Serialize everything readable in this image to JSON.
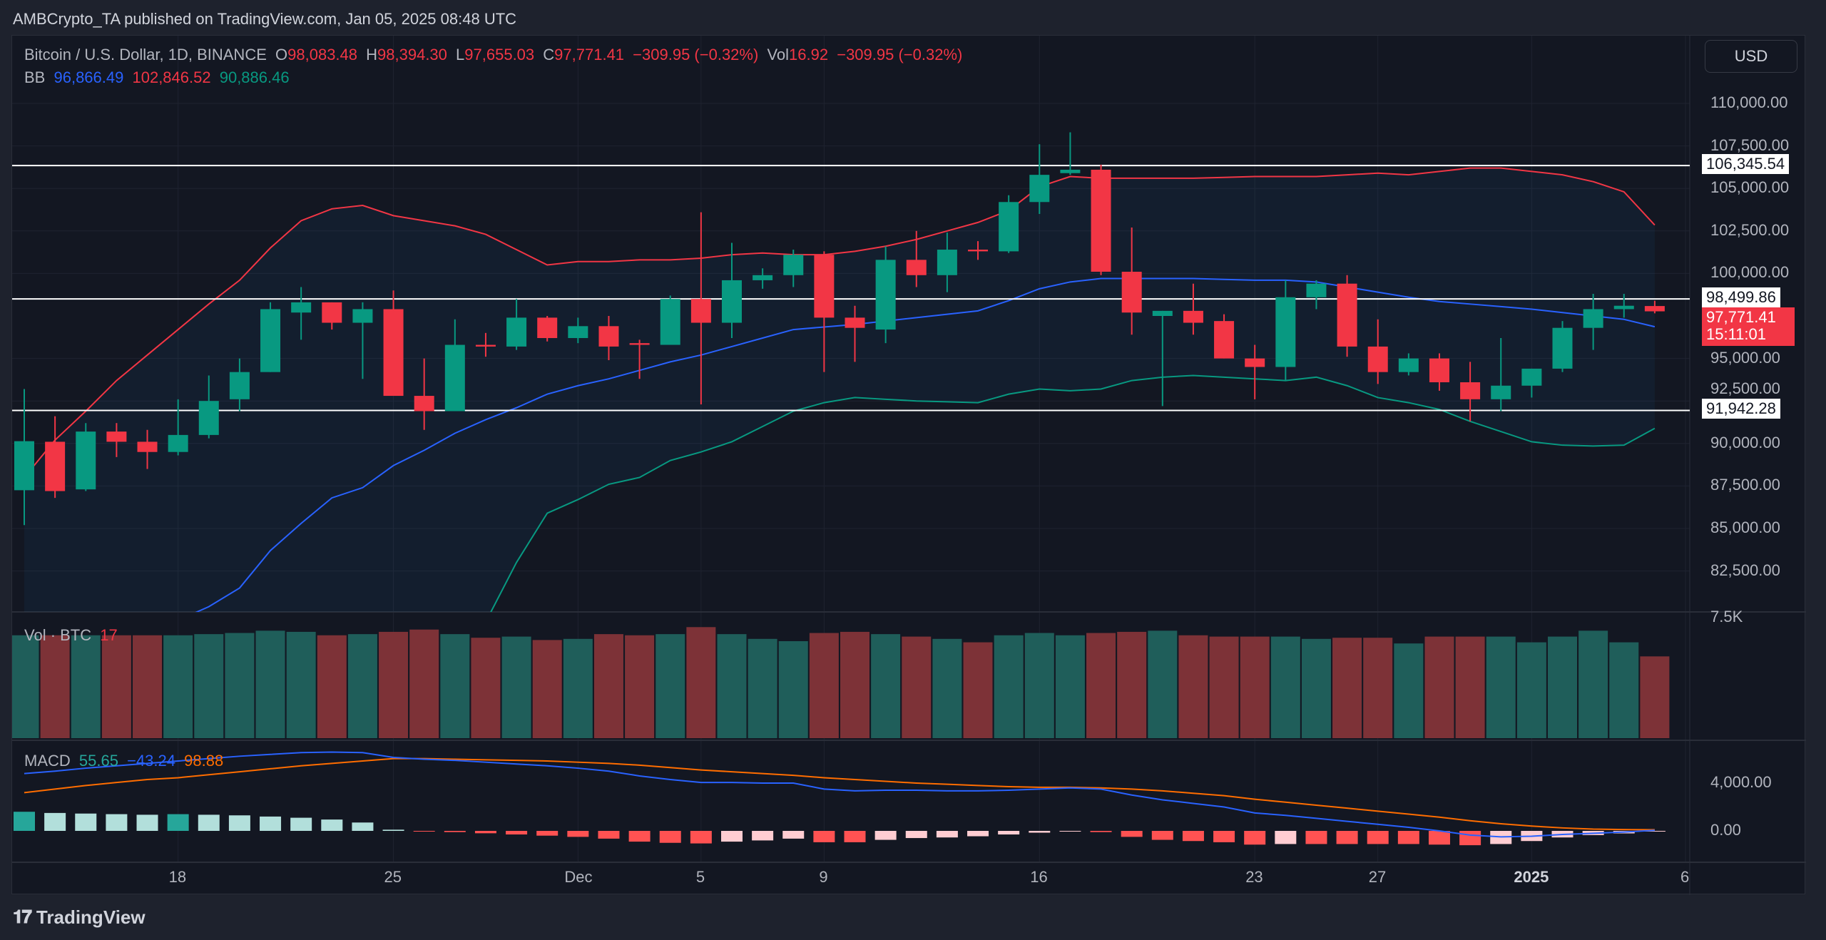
{
  "header": {
    "published": "AMBCrypto_TA published on TradingView.com, Jan 05, 2025 08:48 UTC"
  },
  "legend": {
    "symbol": "Bitcoin / U.S. Dollar, 1D, BINANCE",
    "o_label": "O",
    "o": "98,083.48",
    "h_label": "H",
    "h": "98,394.30",
    "l_label": "L",
    "l": "97,655.03",
    "c_label": "C",
    "c": "97,771.41",
    "change": "−309.95 (−0.32%)",
    "vol_label": "Vol",
    "vol": "16.92",
    "vol_change": "−309.95 (−0.32%)",
    "bb_label": "BB",
    "bb_basis": "96,866.49",
    "bb_upper": "102,846.52",
    "bb_lower": "90,886.46"
  },
  "volume_legend": {
    "label": "Vol · BTC",
    "value": "17"
  },
  "macd_legend": {
    "label": "MACD",
    "v1": "55.65",
    "v2": "−43.24",
    "v3": "98.88"
  },
  "currency_button": "USD",
  "footer": {
    "brand": "TradingView",
    "logo_text": "17"
  },
  "price_tags": {
    "resistance": "106,345.54",
    "mid": "98,499.86",
    "support": "91,942.28",
    "last_price": "97,771.41",
    "countdown": "15:11:01"
  },
  "colors": {
    "up": "#089981",
    "down": "#f23645",
    "bb_upper": "#f23645",
    "bb_basis": "#2962ff",
    "bb_lower": "#089981",
    "macd": "#2962ff",
    "signal": "#ff6d00",
    "vol_up": "#1f5e5a",
    "vol_down": "#7d3237"
  },
  "chart_data": {
    "type": "candlestick",
    "title": "Bitcoin / U.S. Dollar, 1D, BINANCE",
    "price_ticks": [
      110000,
      107500,
      105000,
      102500,
      100000,
      92500,
      95000,
      90000,
      87500,
      85000,
      82500
    ],
    "price_tick_labels": [
      "110,000.00",
      "107,500.00",
      "105,000.00",
      "102,500.00",
      "100,000.00",
      "92,500.00",
      "95,000.00",
      "90,000.00",
      "87,500.00",
      "85,000.00",
      "82,500.00"
    ],
    "ylim": [
      77500,
      112500
    ],
    "horizontal_lines": [
      106345.54,
      98499.86,
      91942.28
    ],
    "time_labels": [
      {
        "date": "2024-11-18",
        "label": "18"
      },
      {
        "date": "2024-11-25",
        "label": "25"
      },
      {
        "date": "2024-12-01",
        "label": "Dec"
      },
      {
        "date": "2024-12-05",
        "label": "5"
      },
      {
        "date": "2024-12-09",
        "label": "9"
      },
      {
        "date": "2024-12-16",
        "label": "16"
      },
      {
        "date": "2024-12-23",
        "label": "23"
      },
      {
        "date": "2024-12-27",
        "label": "27"
      },
      {
        "date": "2025-01-01",
        "label": "2025",
        "bold": true
      },
      {
        "date": "2025-01-06",
        "label": "6"
      }
    ],
    "start_date": "2024-11-13",
    "ohlc": [
      [
        87250,
        93200,
        85200,
        90135
      ],
      [
        90100,
        91600,
        86800,
        87200
      ],
      [
        87300,
        91200,
        87200,
        90700
      ],
      [
        90700,
        91200,
        89200,
        90100
      ],
      [
        90100,
        90800,
        88500,
        89500
      ],
      [
        89500,
        92600,
        89300,
        90500
      ],
      [
        90500,
        94000,
        90300,
        92500
      ],
      [
        92600,
        95000,
        91900,
        94200
      ],
      [
        94200,
        98300,
        94200,
        97900
      ],
      [
        97700,
        99200,
        96100,
        98300
      ],
      [
        98300,
        98300,
        96700,
        97100
      ],
      [
        97100,
        98300,
        93800,
        97900
      ],
      [
        97900,
        99000,
        92800,
        92800
      ],
      [
        92800,
        95000,
        90800,
        91900
      ],
      [
        91900,
        97300,
        91900,
        95800
      ],
      [
        95800,
        96500,
        95100,
        95700
      ],
      [
        95700,
        98500,
        95500,
        97400
      ],
      [
        97400,
        97500,
        96000,
        96200
      ],
      [
        96200,
        97400,
        95900,
        96900
      ],
      [
        96900,
        97500,
        94900,
        95700
      ],
      [
        95900,
        96100,
        93800,
        95800
      ],
      [
        95800,
        98700,
        95800,
        98500
      ],
      [
        98500,
        103600,
        92300,
        97100
      ],
      [
        97100,
        101800,
        96200,
        99600
      ],
      [
        99600,
        100300,
        99100,
        99900
      ],
      [
        99900,
        101400,
        99200,
        101100
      ],
      [
        101100,
        101300,
        94200,
        97400
      ],
      [
        97400,
        98100,
        94800,
        96800
      ],
      [
        96700,
        101600,
        95900,
        100800
      ],
      [
        100800,
        102500,
        99200,
        99900
      ],
      [
        99900,
        102400,
        98900,
        101400
      ],
      [
        101400,
        101900,
        100800,
        101300
      ],
      [
        101300,
        104600,
        101200,
        104200
      ],
      [
        104200,
        107600,
        103500,
        105800
      ],
      [
        105900,
        108300,
        105800,
        106100
      ],
      [
        106100,
        106400,
        99900,
        100100
      ],
      [
        100100,
        102700,
        96400,
        97700
      ],
      [
        97500,
        97800,
        92200,
        97800
      ],
      [
        97800,
        99400,
        96400,
        97100
      ],
      [
        97200,
        97600,
        95000,
        95000
      ],
      [
        95000,
        95800,
        92600,
        94500
      ],
      [
        94500,
        99600,
        93700,
        98600
      ],
      [
        98600,
        99600,
        97900,
        99400
      ],
      [
        99400,
        99900,
        95100,
        95700
      ],
      [
        95700,
        97300,
        93500,
        94200
      ],
      [
        94200,
        95300,
        94000,
        95000
      ],
      [
        95000,
        95300,
        93100,
        93600
      ],
      [
        93600,
        94800,
        91300,
        92600
      ],
      [
        92600,
        96200,
        91900,
        93400
      ],
      [
        93400,
        94400,
        92700,
        94400
      ],
      [
        94400,
        97200,
        94200,
        96800
      ],
      [
        96800,
        98800,
        95500,
        97900
      ],
      [
        97900,
        98800,
        97400,
        98100
      ],
      [
        98083.48,
        98394.3,
        97655.03,
        97771.41
      ]
    ],
    "volume": [
      6290,
      6290,
      6290,
      6290,
      6290,
      6290,
      6360,
      6430,
      6570,
      6500,
      6290,
      6360,
      6500,
      6640,
      6360,
      6140,
      6210,
      6000,
      6070,
      6360,
      6290,
      6360,
      6790,
      6360,
      6070,
      5930,
      6430,
      6500,
      6360,
      6210,
      6070,
      5860,
      6290,
      6430,
      6290,
      6430,
      6500,
      6570,
      6290,
      6210,
      6210,
      6210,
      6070,
      6140,
      6140,
      5790,
      6210,
      6210,
      6210,
      5860,
      6210,
      6570,
      5860,
      5000
    ],
    "volume_axis_label": "7.5K",
    "volume_max": 7500,
    "bb_upper": [
      88000,
      90200,
      91900,
      93700,
      95200,
      96700,
      98200,
      99600,
      101500,
      103100,
      103800,
      104000,
      103400,
      103100,
      102800,
      102300,
      101400,
      100500,
      100700,
      100700,
      100800,
      100800,
      100900,
      101100,
      101200,
      101100,
      101100,
      101300,
      101600,
      102000,
      102500,
      103000,
      103700,
      105100,
      105700,
      105600,
      105600,
      105600,
      105600,
      105650,
      105700,
      105700,
      105700,
      105800,
      105900,
      105800,
      106000,
      106200,
      106200,
      106000,
      105800,
      105400,
      104800,
      102846.52
    ],
    "bb_basis": [
      null,
      null,
      null,
      null,
      null,
      79600,
      80400,
      81500,
      83700,
      85300,
      86800,
      87400,
      88700,
      89600,
      90600,
      91400,
      92100,
      92900,
      93400,
      93800,
      94300,
      94800,
      95200,
      95700,
      96200,
      96700,
      96850,
      97000,
      97200,
      97400,
      97600,
      97800,
      98400,
      99100,
      99500,
      99700,
      99700,
      99700,
      99700,
      99650,
      99600,
      99600,
      99500,
      99200,
      98900,
      98600,
      98350,
      98200,
      98050,
      97900,
      97700,
      97500,
      97300,
      96866.49
    ],
    "bb_lower": [
      null,
      null,
      null,
      null,
      null,
      null,
      null,
      null,
      null,
      null,
      null,
      null,
      null,
      null,
      null,
      79500,
      83000,
      85900,
      86700,
      87600,
      88000,
      89000,
      89500,
      90100,
      91000,
      91900,
      92400,
      92700,
      92600,
      92500,
      92450,
      92400,
      92900,
      93200,
      93100,
      93200,
      93700,
      93900,
      94000,
      93900,
      93800,
      93700,
      93900,
      93400,
      92700,
      92400,
      92000,
      91300,
      90700,
      90100,
      89900,
      89850,
      89900,
      90886.46
    ],
    "macd": [
      4800,
      5000,
      5250,
      5450,
      5650,
      5850,
      6050,
      6250,
      6400,
      6550,
      6600,
      6550,
      6150,
      6000,
      5900,
      5750,
      5600,
      5450,
      5250,
      5000,
      4600,
      4300,
      4050,
      4050,
      4000,
      4000,
      3500,
      3350,
      3400,
      3400,
      3350,
      3350,
      3400,
      3500,
      3600,
      3500,
      3000,
      2600,
      2300,
      2000,
      1500,
      1300,
      1050,
      800,
      550,
      300,
      0,
      -350,
      -500,
      -450,
      -300,
      -200,
      -100,
      55.65
    ],
    "signal": [
      3200,
      3500,
      3800,
      4050,
      4300,
      4450,
      4700,
      4950,
      5200,
      5450,
      5650,
      5850,
      6050,
      6050,
      6000,
      5950,
      5900,
      5850,
      5750,
      5650,
      5500,
      5300,
      5100,
      4950,
      4800,
      4650,
      4450,
      4300,
      4150,
      4000,
      3900,
      3800,
      3700,
      3650,
      3650,
      3600,
      3500,
      3350,
      3150,
      2950,
      2650,
      2400,
      2150,
      1900,
      1650,
      1400,
      1150,
      850,
      600,
      400,
      250,
      150,
      110,
      98.88
    ],
    "macd_ticks": [
      4000,
      0
    ],
    "macd_tick_labels": [
      "4,000.00",
      "0.00"
    ]
  }
}
